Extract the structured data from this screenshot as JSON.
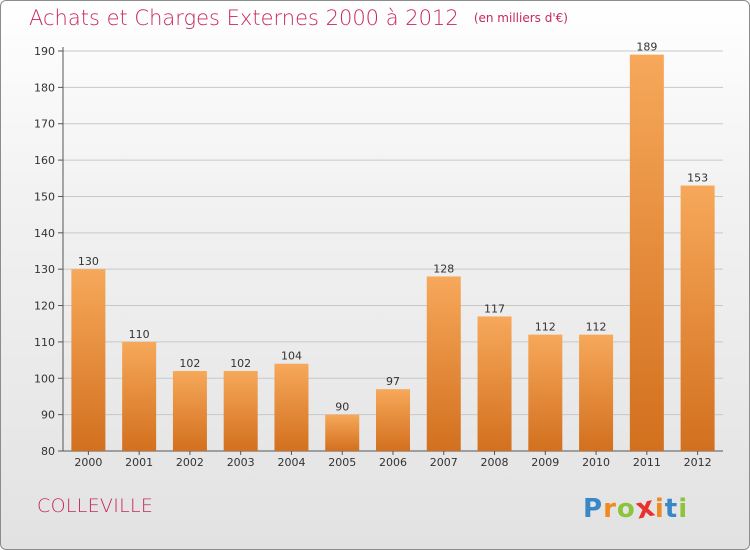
{
  "header": {
    "title": "Achats et Charges Externes 2000 à 2012",
    "unit": "(en milliers d'€)"
  },
  "footer": {
    "commune": "COLLEVILLE",
    "logo": {
      "letters": [
        "P",
        "r",
        "o",
        "x",
        "i",
        "t",
        "i"
      ],
      "colors": [
        "#3a87c8",
        "#f08a1e",
        "#8cc43c",
        "#e8322d",
        "#f08a1e",
        "#3a87c8",
        "#8cc43c"
      ]
    }
  },
  "colors": {
    "title": "#c8285a",
    "bar_light": "#f7a85a",
    "bar_dark": "#d2701e",
    "grid": "#c8c8c8"
  },
  "chart_data": {
    "type": "bar",
    "categories": [
      "2000",
      "2001",
      "2002",
      "2003",
      "2004",
      "2005",
      "2006",
      "2007",
      "2008",
      "2009",
      "2010",
      "2011",
      "2012"
    ],
    "values": [
      130,
      110,
      102,
      102,
      104,
      90,
      97,
      128,
      117,
      112,
      112,
      189,
      153
    ],
    "title": "Achats et Charges Externes 2000 à 2012",
    "ylim": [
      80,
      190
    ],
    "yticks": [
      80,
      90,
      100,
      110,
      120,
      130,
      140,
      150,
      160,
      170,
      180,
      190
    ],
    "grid": true,
    "data_labels": true
  }
}
